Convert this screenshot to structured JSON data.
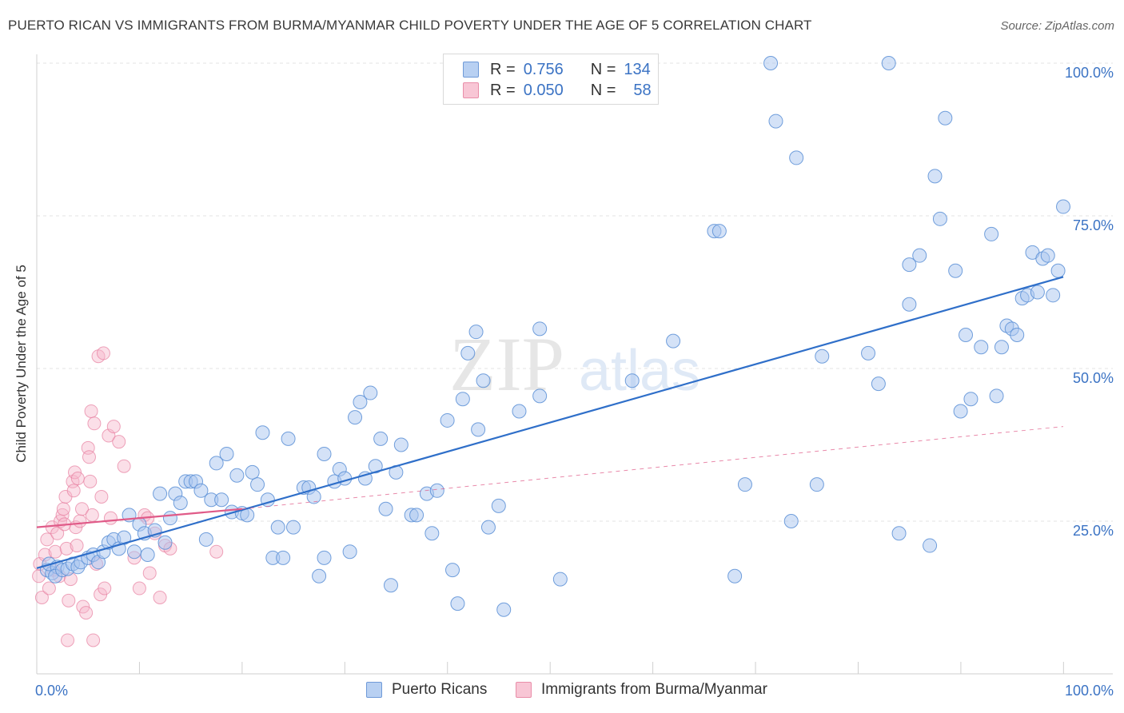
{
  "header": {
    "title": "PUERTO RICAN VS IMMIGRANTS FROM BURMA/MYANMAR CHILD POVERTY UNDER THE AGE OF 5 CORRELATION CHART",
    "source": "Source: ZipAtlas.com"
  },
  "legend": {
    "r_label": "R =",
    "n_label": "N =",
    "series1": {
      "r": "0.756",
      "n": "134"
    },
    "series2": {
      "r": "0.050",
      "n": "58"
    }
  },
  "watermark": {
    "zip": "ZIP",
    "atlas": "atlas"
  },
  "colors": {
    "blue_fill": "#a9c6ef",
    "blue_stroke": "#5b8fd6",
    "blue_line": "#2f6fc9",
    "pink_fill": "#f6b8cb",
    "pink_stroke": "#e77fa0",
    "pink_line": "#e05a88",
    "accent_text": "#3b73c4"
  },
  "chart_data": {
    "type": "scatter",
    "title": "PUERTO RICAN VS IMMIGRANTS FROM BURMA/MYANMAR CHILD POVERTY UNDER THE AGE OF 5 CORRELATION CHART",
    "xlabel": "",
    "ylabel": "Child Poverty Under the Age of 5",
    "xlim": [
      0,
      100
    ],
    "ylim": [
      0,
      100
    ],
    "x_tick_labels": [
      "0.0%",
      "100.0%"
    ],
    "y_tick_labels": [
      "25.0%",
      "50.0%",
      "75.0%",
      "100.0%"
    ],
    "y_ticks": [
      25,
      50,
      75,
      100
    ],
    "legend_position": "top-center",
    "series": [
      {
        "name": "Puerto Ricans",
        "r": 0.756,
        "n": 134,
        "trend": {
          "x": [
            0,
            100
          ],
          "y": [
            17.3,
            65.0
          ],
          "style": "solid"
        },
        "points": [
          [
            1,
            17
          ],
          [
            1.5,
            16.5
          ],
          [
            1.2,
            18
          ],
          [
            2,
            17.5
          ],
          [
            1.8,
            16
          ],
          [
            2.5,
            17
          ],
          [
            3,
            17.2
          ],
          [
            3.5,
            18
          ],
          [
            4,
            17.5
          ],
          [
            4.3,
            18.3
          ],
          [
            5,
            19
          ],
          [
            5.5,
            19.5
          ],
          [
            6,
            18.3
          ],
          [
            6.5,
            20
          ],
          [
            7,
            21.5
          ],
          [
            7.5,
            22
          ],
          [
            8,
            20.5
          ],
          [
            8.5,
            22.3
          ],
          [
            9,
            26
          ],
          [
            9.5,
            20
          ],
          [
            10,
            24.5
          ],
          [
            10.5,
            23
          ],
          [
            10.8,
            19.5
          ],
          [
            11.5,
            23.5
          ],
          [
            12,
            29.5
          ],
          [
            12.5,
            21.5
          ],
          [
            13,
            25.5
          ],
          [
            13.5,
            29.5
          ],
          [
            14,
            28
          ],
          [
            14.5,
            31.5
          ],
          [
            15,
            31.5
          ],
          [
            15.5,
            31.5
          ],
          [
            16,
            30
          ],
          [
            16.5,
            22
          ],
          [
            17,
            28.5
          ],
          [
            17.5,
            34.5
          ],
          [
            18,
            28.5
          ],
          [
            18.5,
            36
          ],
          [
            19,
            26.5
          ],
          [
            19.5,
            32.5
          ],
          [
            20,
            26.3
          ],
          [
            20.5,
            26
          ],
          [
            21,
            33
          ],
          [
            21.5,
            31
          ],
          [
            22,
            39.5
          ],
          [
            22.5,
            28.5
          ],
          [
            23,
            19
          ],
          [
            23.5,
            24
          ],
          [
            24,
            19
          ],
          [
            24.5,
            38.5
          ],
          [
            25,
            24
          ],
          [
            26,
            30.5
          ],
          [
            26.5,
            30.5
          ],
          [
            27,
            29
          ],
          [
            27.5,
            16
          ],
          [
            28,
            19
          ],
          [
            28,
            36
          ],
          [
            29,
            31.5
          ],
          [
            29.5,
            33.5
          ],
          [
            30,
            32
          ],
          [
            30.5,
            20
          ],
          [
            31,
            42
          ],
          [
            31.5,
            44.5
          ],
          [
            32,
            32
          ],
          [
            32.5,
            46
          ],
          [
            33,
            34
          ],
          [
            33.5,
            38.5
          ],
          [
            34,
            27
          ],
          [
            34.5,
            14.5
          ],
          [
            35,
            33
          ],
          [
            35.5,
            37.5
          ],
          [
            36.5,
            26
          ],
          [
            37,
            26
          ],
          [
            38,
            29.5
          ],
          [
            38.5,
            23
          ],
          [
            39,
            30
          ],
          [
            40,
            41.5
          ],
          [
            40.5,
            17
          ],
          [
            41,
            11.5
          ],
          [
            41.5,
            45
          ],
          [
            42,
            52.5
          ],
          [
            42.8,
            56
          ],
          [
            43,
            40
          ],
          [
            43.5,
            48
          ],
          [
            44,
            24
          ],
          [
            45,
            27.5
          ],
          [
            45.5,
            10.5
          ],
          [
            47,
            43
          ],
          [
            49,
            56.5
          ],
          [
            49,
            45.5
          ],
          [
            51,
            15.5
          ],
          [
            58,
            48
          ],
          [
            62,
            54.5
          ],
          [
            66,
            72.5
          ],
          [
            66.5,
            72.5
          ],
          [
            68,
            16
          ],
          [
            69,
            31
          ],
          [
            71.5,
            100
          ],
          [
            72,
            90.5
          ],
          [
            73.5,
            25
          ],
          [
            74,
            84.5
          ],
          [
            76,
            31
          ],
          [
            76.5,
            52
          ],
          [
            81,
            52.5
          ],
          [
            82,
            47.5
          ],
          [
            84,
            23
          ],
          [
            85,
            60.5
          ],
          [
            85,
            67
          ],
          [
            86,
            68.5
          ],
          [
            87,
            21
          ],
          [
            87.5,
            81.5
          ],
          [
            88,
            74.5
          ],
          [
            88.5,
            91
          ],
          [
            89.5,
            66
          ],
          [
            90,
            43
          ],
          [
            90.5,
            55.5
          ],
          [
            91,
            45
          ],
          [
            92,
            53.5
          ],
          [
            93,
            72
          ],
          [
            93.5,
            45.5
          ],
          [
            94,
            53.5
          ],
          [
            94.5,
            57
          ],
          [
            95,
            56.5
          ],
          [
            95.5,
            55.5
          ],
          [
            96,
            61.5
          ],
          [
            96.5,
            62
          ],
          [
            97,
            69
          ],
          [
            97.5,
            62.5
          ],
          [
            98,
            68
          ],
          [
            98.5,
            68.5
          ],
          [
            99,
            62
          ],
          [
            99.5,
            66
          ],
          [
            100,
            76.5
          ],
          [
            83,
            100
          ]
        ]
      },
      {
        "name": "Immigrants from Burma/Myanmar",
        "r": 0.05,
        "n": 58,
        "trend": {
          "x": [
            0,
            20
          ],
          "y": [
            24.0,
            27.0
          ],
          "style": "solid",
          "extended_to": [
            100,
            40.5
          ]
        },
        "points": [
          [
            0.2,
            16
          ],
          [
            0.3,
            18
          ],
          [
            0.5,
            12.5
          ],
          [
            0.8,
            19.5
          ],
          [
            1,
            22
          ],
          [
            1.2,
            14
          ],
          [
            1.5,
            24
          ],
          [
            1.6,
            17
          ],
          [
            1.8,
            20
          ],
          [
            2,
            23
          ],
          [
            2.2,
            16
          ],
          [
            2.3,
            25
          ],
          [
            2.5,
            26
          ],
          [
            2.6,
            27
          ],
          [
            2.8,
            29
          ],
          [
            2.9,
            20.5
          ],
          [
            3,
            5.5
          ],
          [
            3.1,
            12
          ],
          [
            3.3,
            15.5
          ],
          [
            3.5,
            31.5
          ],
          [
            3.6,
            30
          ],
          [
            3.7,
            33
          ],
          [
            3.8,
            24
          ],
          [
            3.9,
            21
          ],
          [
            4,
            32
          ],
          [
            4.2,
            25
          ],
          [
            4.4,
            27
          ],
          [
            4.5,
            11
          ],
          [
            4.8,
            10
          ],
          [
            5,
            37
          ],
          [
            5.1,
            35.5
          ],
          [
            5.2,
            31.5
          ],
          [
            5.3,
            43
          ],
          [
            5.4,
            26
          ],
          [
            5.5,
            5.5
          ],
          [
            5.6,
            41
          ],
          [
            5.8,
            18
          ],
          [
            6,
            52
          ],
          [
            6.2,
            13
          ],
          [
            6.3,
            29
          ],
          [
            6.5,
            52.5
          ],
          [
            6.6,
            14
          ],
          [
            7,
            39
          ],
          [
            7.2,
            25.5
          ],
          [
            7.5,
            40.5
          ],
          [
            8,
            38
          ],
          [
            8.5,
            34
          ],
          [
            9.5,
            19
          ],
          [
            10,
            14
          ],
          [
            10.5,
            26
          ],
          [
            10.8,
            25.5
          ],
          [
            11,
            16.5
          ],
          [
            11.5,
            23
          ],
          [
            12,
            12.5
          ],
          [
            12.5,
            21
          ],
          [
            13,
            20.5
          ],
          [
            17.5,
            20
          ],
          [
            2.7,
            24.5
          ]
        ]
      }
    ]
  },
  "bottom_legend": {
    "series1": "Puerto Ricans",
    "series2": "Immigrants from Burma/Myanmar"
  }
}
